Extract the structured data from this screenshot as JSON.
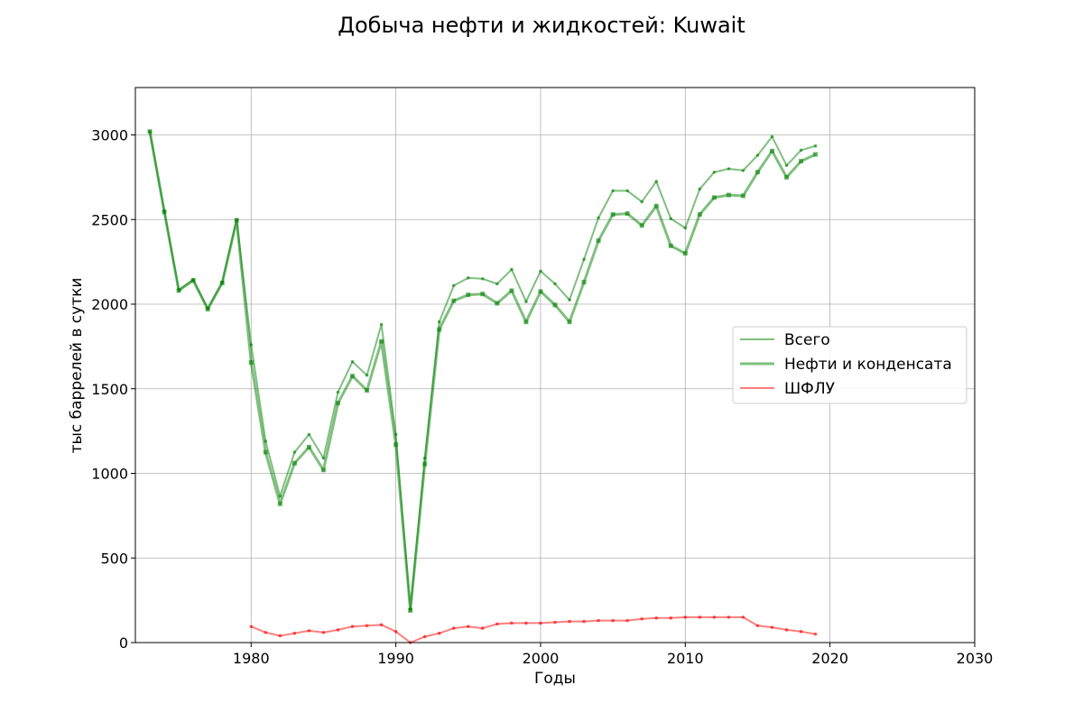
{
  "chart_data": {
    "type": "line",
    "title": "Добыча нефти и жидкостей: Kuwait",
    "xlabel": "Годы",
    "ylabel": "тыс баррелей в сутки",
    "xlim": [
      1972,
      2030
    ],
    "ylim": [
      0,
      3280
    ],
    "xticks": [
      1980,
      1990,
      2000,
      2010,
      2020,
      2030
    ],
    "yticks": [
      0,
      500,
      1000,
      1500,
      2000,
      2500,
      3000
    ],
    "grid": true,
    "legend_position": "center-right",
    "series": [
      {
        "name": "Всего",
        "color": "#008000",
        "style": "thin",
        "x": [
          1973,
          1974,
          1975,
          1976,
          1977,
          1978,
          1979,
          1980,
          1981,
          1982,
          1983,
          1984,
          1985,
          1986,
          1987,
          1988,
          1989,
          1990,
          1991,
          1992,
          1993,
          1994,
          1995,
          1996,
          1997,
          1998,
          1999,
          2000,
          2001,
          2002,
          2003,
          2004,
          2005,
          2006,
          2007,
          2008,
          2009,
          2010,
          2011,
          2012,
          2013,
          2014,
          2015,
          2016,
          2017,
          2018,
          2019
        ],
        "values": [
          3020,
          2550,
          2085,
          2145,
          1975,
          2130,
          2500,
          1760,
          1190,
          865,
          1125,
          1230,
          1090,
          1480,
          1660,
          1580,
          1880,
          1230,
          200,
          1090,
          1895,
          2110,
          2155,
          2150,
          2120,
          2205,
          2015,
          2195,
          2120,
          2025,
          2265,
          2510,
          2670,
          2670,
          2605,
          2725,
          2505,
          2450,
          2680,
          2780,
          2800,
          2790,
          2880,
          2990,
          2820,
          2910,
          2935
        ]
      },
      {
        "name": "Нефти и конденсата",
        "color": "#008000",
        "style": "thick",
        "x": [
          1973,
          1974,
          1975,
          1976,
          1977,
          1978,
          1979,
          1980,
          1981,
          1982,
          1983,
          1984,
          1985,
          1986,
          1987,
          1988,
          1989,
          1990,
          1991,
          1992,
          1993,
          1994,
          1995,
          1996,
          1997,
          1998,
          1999,
          2000,
          2001,
          2002,
          2003,
          2004,
          2005,
          2006,
          2007,
          2008,
          2009,
          2010,
          2011,
          2012,
          2013,
          2014,
          2015,
          2016,
          2017,
          2018,
          2019
        ],
        "values": [
          3020,
          2545,
          2080,
          2140,
          1970,
          2125,
          2495,
          1655,
          1125,
          820,
          1060,
          1155,
          1020,
          1415,
          1575,
          1490,
          1780,
          1170,
          190,
          1055,
          1850,
          2020,
          2055,
          2060,
          2005,
          2080,
          1895,
          2075,
          1995,
          1895,
          2130,
          2375,
          2530,
          2535,
          2465,
          2580,
          2345,
          2300,
          2530,
          2630,
          2645,
          2640,
          2780,
          2905,
          2750,
          2845,
          2885
        ]
      },
      {
        "name": "ШФЛУ",
        "color": "#ff0000",
        "style": "thin",
        "x": [
          1980,
          1981,
          1982,
          1983,
          1984,
          1985,
          1986,
          1987,
          1988,
          1989,
          1990,
          1991,
          1992,
          1993,
          1994,
          1995,
          1996,
          1997,
          1998,
          1999,
          2000,
          2001,
          2002,
          2003,
          2004,
          2005,
          2006,
          2007,
          2008,
          2009,
          2010,
          2011,
          2012,
          2013,
          2014,
          2015,
          2016,
          2017,
          2018,
          2019
        ],
        "values": [
          95,
          60,
          40,
          55,
          70,
          60,
          75,
          95,
          100,
          105,
          65,
          0,
          35,
          55,
          85,
          95,
          85,
          110,
          115,
          115,
          115,
          120,
          125,
          125,
          130,
          130,
          130,
          140,
          145,
          145,
          150,
          150,
          150,
          150,
          150,
          100,
          90,
          75,
          65,
          50
        ]
      }
    ]
  }
}
